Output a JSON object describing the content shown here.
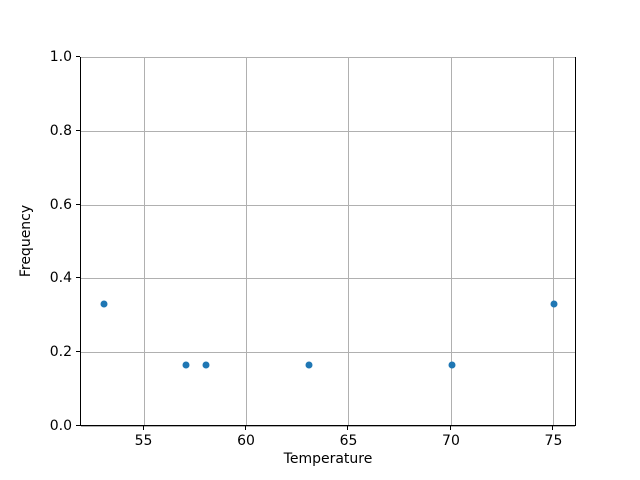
{
  "figure": {
    "background": "#ffffff"
  },
  "chart_data": {
    "type": "scatter",
    "title": "",
    "xlabel": "Temperature",
    "ylabel": "Frequency",
    "x": [
      53,
      57,
      58,
      63,
      70,
      75
    ],
    "y": [
      0.333,
      0.167,
      0.167,
      0.167,
      0.167,
      0.333
    ],
    "xlim": [
      51.9,
      76.1
    ],
    "ylim": [
      0.0,
      1.0
    ],
    "xticks": {
      "values": [
        55,
        60,
        65,
        70,
        75
      ],
      "labels": [
        "55",
        "60",
        "65",
        "70",
        "75"
      ]
    },
    "yticks": {
      "values": [
        0.0,
        0.2,
        0.4,
        0.6,
        0.8,
        1.0
      ],
      "labels": [
        "0.0",
        "0.2",
        "0.4",
        "0.6",
        "0.8",
        "1.0"
      ]
    },
    "grid": true,
    "legend_position": "none",
    "marker_color": "#1f77b4",
    "grid_color": "#b0b0b0",
    "spine_color": "#000000",
    "tick_color": "#000000"
  }
}
